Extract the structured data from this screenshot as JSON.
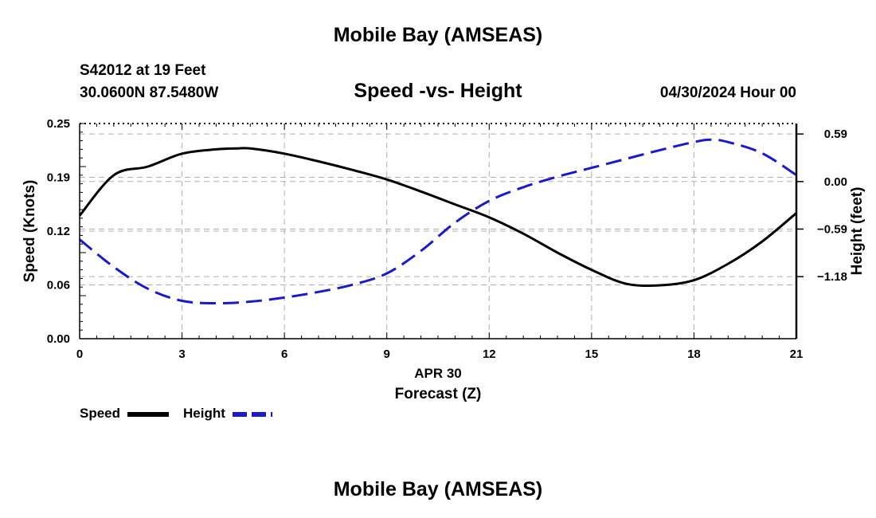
{
  "header": {
    "main_title": "Mobile Bay (AMSEAS)",
    "station": "S42012 at 19 Feet",
    "coords": "30.0600N  87.5480W",
    "subtitle": "Speed -vs- Height",
    "datetime": "04/30/2024 Hour 00"
  },
  "footer": {
    "title": "Mobile Bay (AMSEAS)"
  },
  "legend": {
    "speed_label": "Speed",
    "height_label": "Height"
  },
  "colors": {
    "speed": "#000000",
    "height": "#1a1acc",
    "grid": "#b0b0b0"
  },
  "chart_data": {
    "type": "line",
    "title": "Speed -vs- Height",
    "xlabel_date": "APR 30",
    "xlabel": "Forecast (Z)",
    "ylabel_left": "Speed (Knots)",
    "ylabel_right": "Height (feet)",
    "xlim": [
      0,
      21
    ],
    "ylim_left": [
      0,
      0.25
    ],
    "ylim_right": [
      -1.95,
      0.72
    ],
    "x_ticks": [
      "0",
      "3",
      "6",
      "9",
      "12",
      "15",
      "18",
      "21"
    ],
    "x_tick_values": [
      0,
      3,
      6,
      9,
      12,
      15,
      18,
      21
    ],
    "y_left_ticks": [
      "0.00",
      "0.06",
      "0.12",
      "0.19",
      "0.25"
    ],
    "y_left_tick_values": [
      0.0,
      0.0625,
      0.125,
      0.1875,
      0.25
    ],
    "y_right_ticks": [
      "0.59",
      "0.00",
      "−0.59",
      "−1.18"
    ],
    "y_right_tick_values": [
      0.59,
      0.0,
      -0.59,
      -1.18
    ],
    "grid": true,
    "series": [
      {
        "name": "Speed",
        "axis": "left",
        "style": "solid",
        "x": [
          0,
          1,
          2,
          3,
          4,
          4.6,
          5,
          6,
          7,
          8,
          9,
          10,
          11,
          12,
          13,
          14,
          15,
          16,
          17,
          18,
          19,
          20,
          21
        ],
        "values": [
          0.143,
          0.19,
          0.2,
          0.215,
          0.22,
          0.221,
          0.221,
          0.215,
          0.206,
          0.196,
          0.185,
          0.171,
          0.156,
          0.141,
          0.122,
          0.1,
          0.08,
          0.064,
          0.062,
          0.068,
          0.087,
          0.113,
          0.146
        ]
      },
      {
        "name": "Height",
        "axis": "right",
        "style": "dashed",
        "x": [
          0,
          1,
          2,
          3,
          4,
          5,
          6,
          7,
          8,
          9,
          10,
          11,
          12,
          13,
          14,
          15,
          16,
          17,
          18,
          18.5,
          19,
          20,
          21
        ],
        "values": [
          -0.72,
          -1.06,
          -1.33,
          -1.48,
          -1.51,
          -1.49,
          -1.44,
          -1.37,
          -1.28,
          -1.14,
          -0.86,
          -0.51,
          -0.24,
          -0.07,
          0.06,
          0.17,
          0.28,
          0.39,
          0.49,
          0.52,
          0.49,
          0.35,
          0.08
        ]
      }
    ]
  }
}
